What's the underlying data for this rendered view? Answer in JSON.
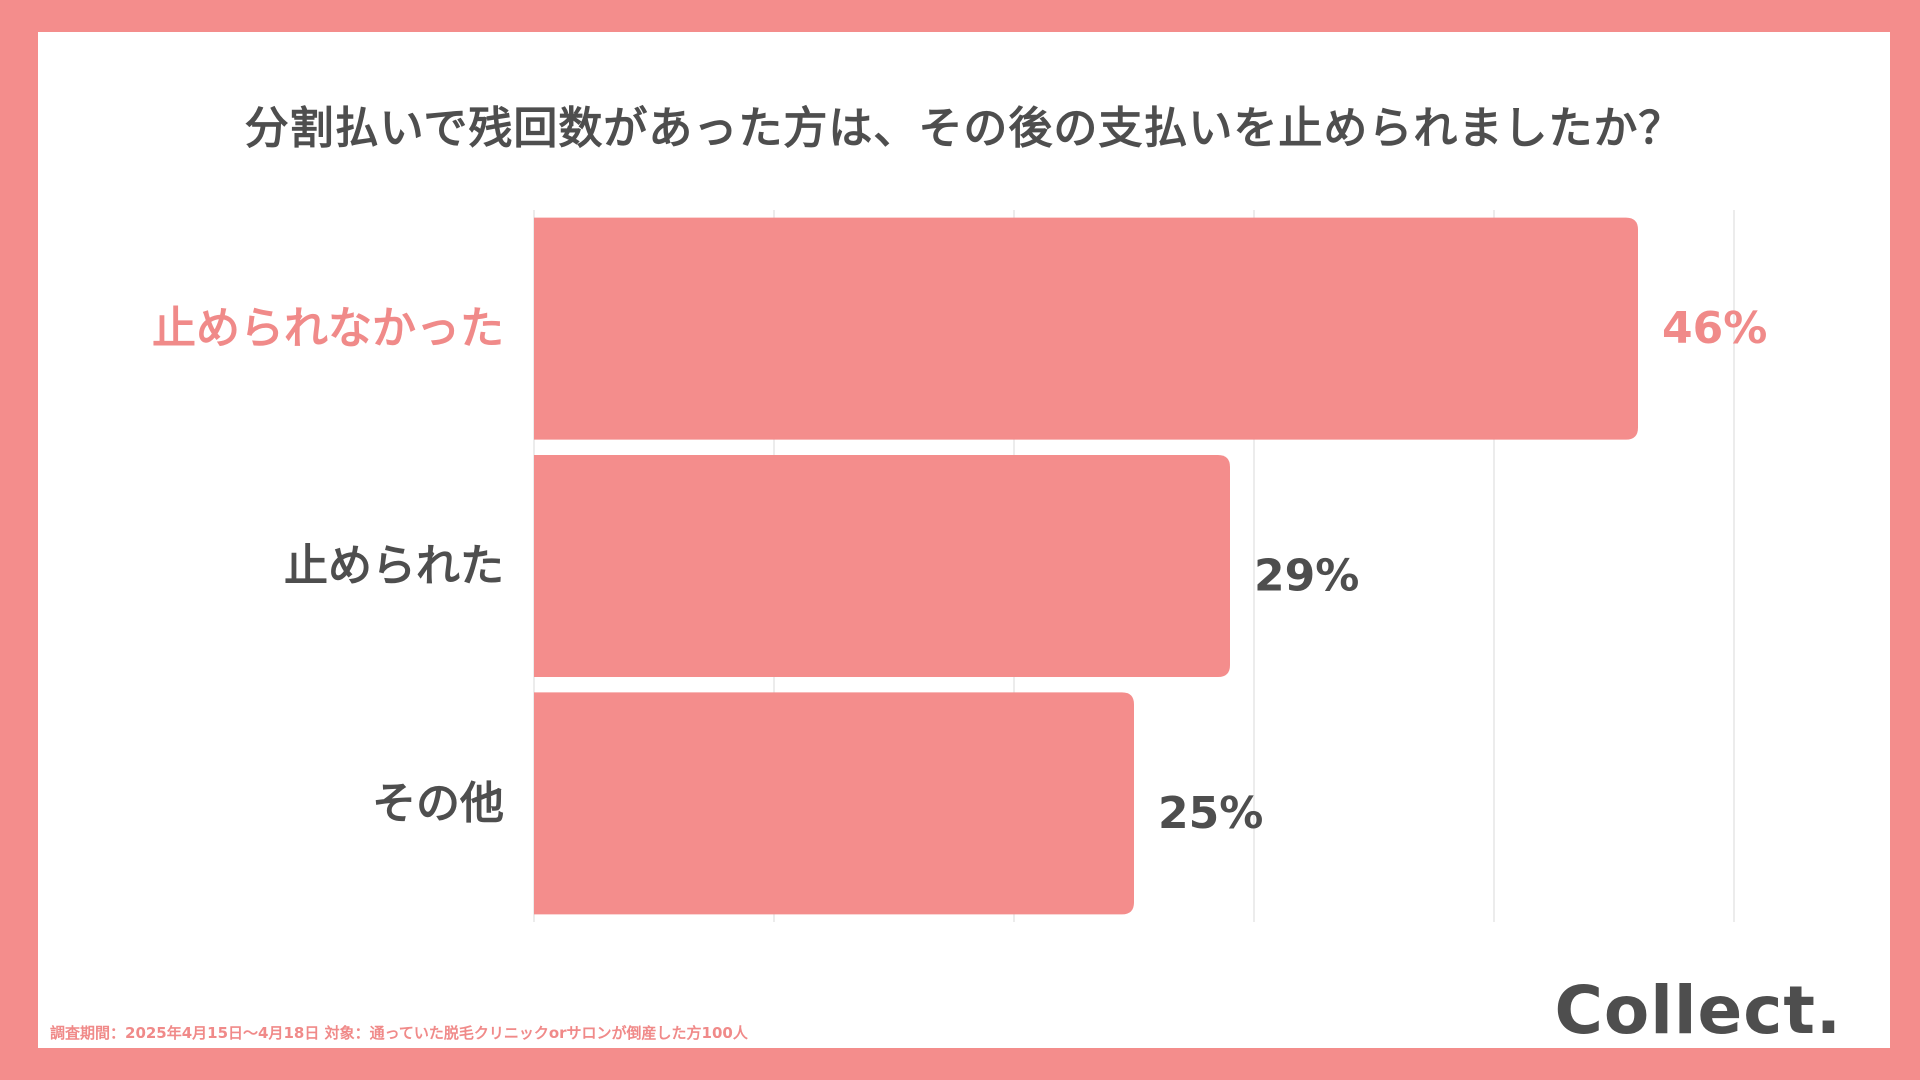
{
  "title": "分割払いで残回数があった方は、その後の支払いを止められましたか？",
  "footnote": "調査期間：2025年4月15日～4月18日  対象：通っていた脱毛クリニックorサロンが倒産した方100人",
  "logo": "Collect.",
  "colors": {
    "background": "#F48D8C",
    "bar": "#F48D8C",
    "highlight_text": "#F08A89",
    "text": "#4E4E4E",
    "grid": "#E6E6E6"
  },
  "chart_data": {
    "type": "bar",
    "orientation": "horizontal",
    "categories": [
      "止められなかった",
      "止められた",
      "その他"
    ],
    "values": [
      46,
      29,
      25
    ],
    "value_labels": [
      "46%",
      "29%",
      "25%"
    ],
    "highlight_index": 0,
    "xlim": [
      0,
      50
    ],
    "grid": true,
    "title": "分割払いで残回数があった方は、その後の支払いを止められましたか？"
  }
}
